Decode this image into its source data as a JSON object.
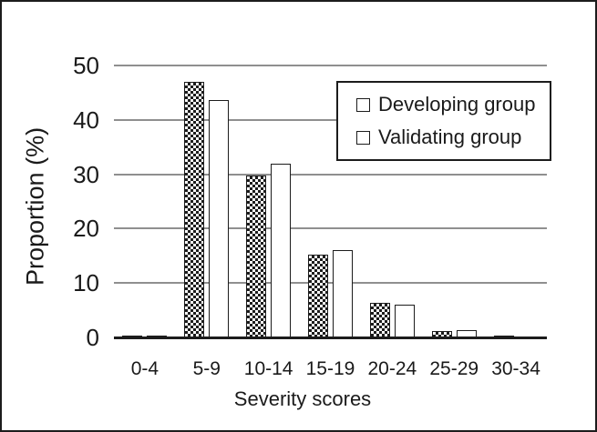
{
  "figure": {
    "background": "#ffffff",
    "border_color": "#1c1c1c"
  },
  "chart_data": {
    "type": "bar",
    "title": "",
    "xlabel": "Severity scores",
    "ylabel": "Proportion (%)",
    "categories": [
      "0-4",
      "5-9",
      "10-14",
      "15-19",
      "20-24",
      "25-29",
      "30-34"
    ],
    "series": [
      {
        "name": "Developing group",
        "fill": "dotted-pattern",
        "values": [
          0.4,
          47.0,
          29.7,
          15.3,
          6.4,
          1.2,
          0.4
        ]
      },
      {
        "name": "Validating group",
        "fill": "white",
        "values": [
          0.4,
          43.7,
          32.0,
          16.1,
          6.0,
          1.4,
          0.0
        ]
      }
    ],
    "ylim": [
      0,
      50
    ],
    "yticks": [
      0,
      10,
      20,
      30,
      40,
      50
    ],
    "grid": true,
    "legend_position": "upper-right-inside"
  },
  "legend": {
    "items": [
      {
        "label": "Developing group",
        "marker": "dotted-square"
      },
      {
        "label": "Validating group",
        "marker": "white-square"
      }
    ]
  },
  "colors": {
    "grid": "#8f8f8f",
    "axis": "#1c1c1c",
    "text": "#1a1a1a",
    "bar_border": "#1c1c1c",
    "bar_fill_validating": "#ffffff"
  }
}
